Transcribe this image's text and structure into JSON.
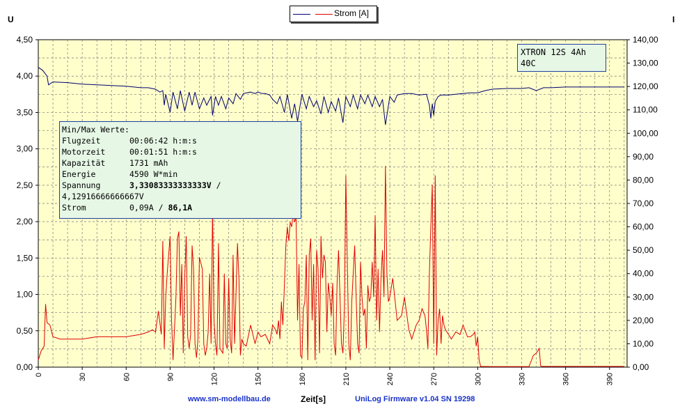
{
  "legend": {
    "entries": [
      {
        "name": "",
        "color": "#00006e"
      },
      {
        "name": "Strom [A]",
        "color": "#e00000"
      }
    ]
  },
  "axis_left_label": "U",
  "axis_right_label": "I",
  "info_box": {
    "title": "Min/Max Werte:",
    "flugzeit_label": "Flugzeit",
    "flugzeit_value": "00:06:42 h:m:s",
    "motorzeit_label": "Motorzeit",
    "motorzeit_value": "00:01:51 h:m:s",
    "kapazitaet_label": "Kapazität",
    "kapazitaet_value": "1731 mAh",
    "energie_label": "Energie",
    "energie_value": "4590 W*min",
    "spannung_label": "Spannung",
    "spannung_min": "3,33083333333333V",
    "spannung_sep": "/",
    "spannung_max": "4,12916666666667V",
    "strom_label": "Strom",
    "strom_min": "0,09A",
    "strom_sep": "/",
    "strom_max": "86,1A"
  },
  "title_box": {
    "line1": "XTRON 12S 4Ah",
    "line2": "40C"
  },
  "footer": {
    "left": "www.sm-modellbau.de",
    "right": "UniLog Firmware v1.04 SN 19298"
  },
  "chart_data": {
    "type": "line",
    "xlabel": "Zeit[s]",
    "ylabel": "U",
    "y2label": "I",
    "xlim": [
      0,
      402
    ],
    "ylim": [
      0,
      4.5
    ],
    "y2lim": [
      0,
      140
    ],
    "x_ticks": [
      0,
      30,
      60,
      90,
      120,
      150,
      180,
      210,
      240,
      270,
      300,
      330,
      360,
      390
    ],
    "y_ticks": [
      "0,00",
      "0,50",
      "1,00",
      "1,50",
      "2,00",
      "2,50",
      "3,00",
      "3,50",
      "4,00",
      "4,50"
    ],
    "y2_ticks": [
      "0,00",
      "10,00",
      "20,00",
      "30,00",
      "40,00",
      "50,00",
      "60,00",
      "70,00",
      "80,00",
      "90,00",
      "100,00",
      "110,00",
      "120,00",
      "130,00",
      "140,00"
    ],
    "grid": true,
    "legend_position": "top-center",
    "series": [
      {
        "name": "",
        "axis": "left",
        "color": "#00006e",
        "x": [
          0,
          3,
          6,
          7,
          10,
          20,
          30,
          40,
          50,
          60,
          70,
          75,
          80,
          83,
          85,
          86,
          87,
          90,
          92,
          95,
          97,
          100,
          103,
          105,
          107,
          110,
          113,
          115,
          118,
          119,
          121,
          123,
          125,
          128,
          130,
          133,
          135,
          138,
          140,
          145,
          148,
          150,
          153,
          155,
          158,
          160,
          163,
          165,
          168,
          170,
          173,
          175,
          177,
          180,
          183,
          185,
          188,
          190,
          193,
          195,
          198,
          200,
          203,
          205,
          208,
          210,
          213,
          215,
          218,
          220,
          223,
          225,
          228,
          230,
          233,
          235,
          237,
          240,
          243,
          245,
          250,
          255,
          260,
          265,
          267,
          268,
          269,
          270,
          271,
          273,
          275,
          280,
          285,
          290,
          295,
          300,
          305,
          310,
          320,
          330,
          335,
          340,
          345,
          350,
          360,
          370,
          380,
          390,
          400
        ],
        "y": [
          4.12,
          4.08,
          4.0,
          3.88,
          3.92,
          3.91,
          3.89,
          3.88,
          3.87,
          3.86,
          3.84,
          3.84,
          3.82,
          3.78,
          3.8,
          3.6,
          3.75,
          3.5,
          3.78,
          3.55,
          3.8,
          3.52,
          3.78,
          3.6,
          3.78,
          3.55,
          3.7,
          3.6,
          3.72,
          3.46,
          3.72,
          3.6,
          3.72,
          3.55,
          3.7,
          3.62,
          3.76,
          3.68,
          3.76,
          3.78,
          3.76,
          3.78,
          3.76,
          3.76,
          3.74,
          3.68,
          3.62,
          3.72,
          3.5,
          3.75,
          3.42,
          3.62,
          3.38,
          3.75,
          3.55,
          3.72,
          3.58,
          3.66,
          3.48,
          3.72,
          3.5,
          3.65,
          3.52,
          3.7,
          3.36,
          3.72,
          3.58,
          3.74,
          3.55,
          3.74,
          3.62,
          3.74,
          3.58,
          3.72,
          3.58,
          3.68,
          3.33,
          3.72,
          3.64,
          3.74,
          3.76,
          3.76,
          3.74,
          3.75,
          3.6,
          3.42,
          3.62,
          3.46,
          3.65,
          3.72,
          3.74,
          3.74,
          3.75,
          3.76,
          3.77,
          3.77,
          3.8,
          3.82,
          3.83,
          3.83,
          3.84,
          3.8,
          3.84,
          3.84,
          3.85,
          3.85,
          3.85,
          3.85,
          3.85
        ]
      },
      {
        "name": "Strom [A]",
        "axis": "right",
        "color": "#e00000",
        "x": [
          0,
          2,
          4,
          5,
          6,
          8,
          10,
          15,
          20,
          30,
          40,
          50,
          60,
          70,
          75,
          78,
          80,
          82,
          84,
          85,
          86,
          87,
          88,
          90,
          91,
          92,
          94,
          95,
          96,
          97,
          98,
          99,
          100,
          101,
          102,
          103,
          104,
          105,
          106,
          107,
          108,
          109,
          110,
          112,
          113,
          114,
          115,
          116,
          117,
          118,
          119,
          120,
          121,
          122,
          123,
          124,
          126,
          127,
          128,
          129,
          130,
          131,
          132,
          133,
          134,
          136,
          137,
          138,
          139,
          140,
          142,
          145,
          148,
          150,
          152,
          155,
          158,
          160,
          162,
          163,
          164,
          165,
          166,
          167,
          168,
          169,
          170,
          171,
          172,
          173,
          174,
          175,
          176,
          177,
          178,
          179,
          180,
          181,
          182,
          183,
          184,
          185,
          186,
          187,
          188,
          189,
          190,
          191,
          192,
          193,
          194,
          195,
          196,
          197,
          198,
          199,
          200,
          201,
          202,
          203,
          204,
          205,
          206,
          207,
          208,
          209,
          210,
          211,
          212,
          213,
          214,
          215,
          216,
          217,
          218,
          219,
          220,
          221,
          222,
          223,
          224,
          225,
          226,
          227,
          228,
          229,
          230,
          231,
          232,
          233,
          234,
          235,
          236,
          237,
          238,
          239,
          240,
          242,
          245,
          248,
          250,
          253,
          255,
          258,
          260,
          262,
          264,
          265,
          266,
          267,
          268,
          269,
          270,
          271,
          272,
          273,
          274,
          275,
          276,
          277,
          278,
          280,
          282,
          285,
          288,
          290,
          293,
          295,
          297,
          298,
          299,
          300,
          301,
          302,
          310,
          320,
          330,
          335,
          338,
          340,
          342,
          343,
          344,
          350,
          360,
          370,
          380,
          390,
          400
        ],
        "y": [
          3,
          7,
          9,
          27,
          19,
          18,
          13,
          12,
          12,
          12,
          13,
          13,
          13,
          14,
          15,
          16,
          15,
          24,
          14,
          54,
          8,
          30,
          40,
          56,
          20,
          3,
          30,
          55,
          58,
          22,
          44,
          6,
          38,
          56,
          13,
          8,
          14,
          52,
          42,
          10,
          4,
          12,
          47,
          42,
          10,
          5,
          8,
          15,
          40,
          10,
          68,
          20,
          10,
          5,
          53,
          8,
          6,
          40,
          10,
          8,
          38,
          12,
          6,
          48,
          10,
          53,
          38,
          5,
          12,
          10,
          9,
          18,
          10,
          15,
          13,
          14,
          10,
          18,
          16,
          14,
          20,
          12,
          28,
          18,
          35,
          52,
          60,
          54,
          62,
          60,
          66,
          62,
          64,
          20,
          44,
          5,
          4,
          25,
          28,
          48,
          3,
          48,
          55,
          20,
          44,
          3,
          50,
          42,
          6,
          56,
          38,
          48,
          45,
          15,
          36,
          30,
          22,
          36,
          10,
          5,
          36,
          50,
          30,
          10,
          6,
          25,
          82,
          45,
          10,
          3,
          28,
          40,
          52,
          30,
          10,
          6,
          45,
          30,
          22,
          25,
          8,
          35,
          28,
          30,
          45,
          30,
          65,
          20,
          42,
          15,
          38,
          50,
          30,
          86,
          40,
          28,
          30,
          38,
          20,
          22,
          30,
          16,
          12,
          18,
          20,
          25,
          22,
          16,
          8,
          40,
          60,
          78,
          10,
          82,
          5,
          20,
          25,
          10,
          22,
          18,
          16,
          14,
          12,
          15,
          14,
          18,
          13,
          13,
          14,
          15,
          9,
          13,
          3,
          0.3,
          0.2,
          0.2,
          0.2,
          0.2,
          5,
          6,
          8,
          0.5,
          0.3,
          0.3,
          0.3,
          0.3,
          0.3,
          0.3,
          0.3
        ]
      }
    ]
  }
}
